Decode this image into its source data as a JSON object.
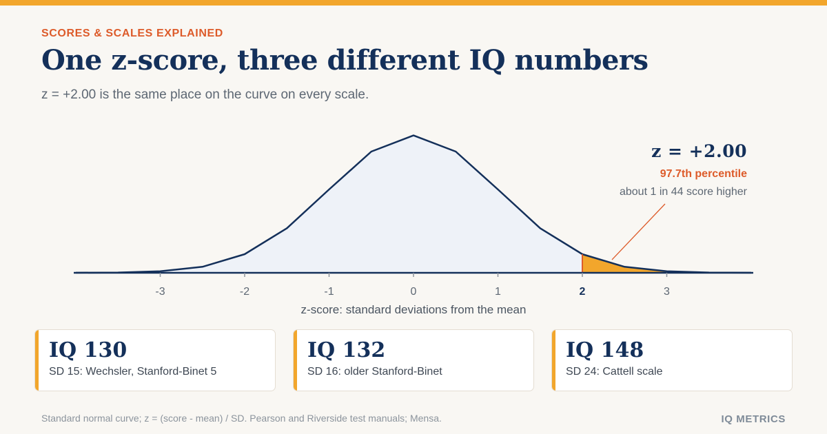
{
  "header": {
    "kicker": "SCORES & SCALES EXPLAINED",
    "title": "One z-score, three different IQ numbers",
    "subtitle": "z = +2.00 is the same place on the curve on every scale."
  },
  "callout": {
    "z_label": "z = +2.00",
    "percentile": "97.7th percentile",
    "note": "about 1 in 44 score higher"
  },
  "chart_data": {
    "type": "area",
    "title": "",
    "xlabel": "z-score: standard deviations from the mean",
    "ylabel": "",
    "x": [
      -4.0,
      -3.5,
      -3.0,
      -2.5,
      -2.0,
      -1.5,
      -1.0,
      -0.5,
      0.0,
      0.5,
      1.0,
      1.5,
      2.0,
      2.5,
      3.0,
      3.5,
      4.0
    ],
    "y": [
      0.0001,
      0.0009,
      0.0044,
      0.0175,
      0.054,
      0.1295,
      0.242,
      0.3521,
      0.3989,
      0.3521,
      0.242,
      0.1295,
      0.054,
      0.0175,
      0.0044,
      0.0009,
      0.0001
    ],
    "xlim": [
      -4,
      4
    ],
    "ylim": [
      0,
      0.4
    ],
    "x_ticks": [
      -3,
      -2,
      -1,
      0,
      1,
      2,
      3
    ],
    "tick_labels": [
      "-3",
      "-2",
      "-1",
      "0",
      "1",
      "2",
      "3"
    ],
    "highlight_tick": 2,
    "shaded_from": 2.0,
    "grid": false,
    "colors": {
      "curve": "#14305a",
      "fill": "#eef2f8",
      "tail": "#f2a62c",
      "marker": "#dd5b2a",
      "axis": "#14305a",
      "tick_label": "#5d6773"
    }
  },
  "cards": [
    {
      "iq": "IQ 130",
      "desc": "SD 15: Wechsler, Stanford-Binet 5"
    },
    {
      "iq": "IQ 132",
      "desc": "SD 16: older Stanford-Binet"
    },
    {
      "iq": "IQ 148",
      "desc": "SD 24: Cattell scale"
    }
  ],
  "footer": {
    "source": "Standard normal curve; z = (score - mean) / SD. Pearson and Riverside test manuals; Mensa.",
    "brand": "IQ METRICS"
  },
  "colors": {
    "accent": "#f2a62c",
    "kicker": "#dd5b2a",
    "navy": "#14305a",
    "background": "#f9f7f3"
  }
}
